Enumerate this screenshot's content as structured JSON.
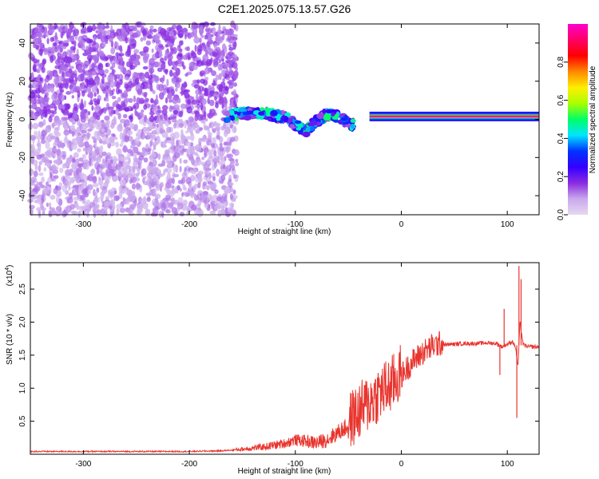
{
  "title": "C2E1.2025.075.13.57.G26",
  "chart_data": [
    {
      "type": "heatmap",
      "xlabel": "Height of straight line (km)",
      "ylabel": "Frequency (Hz)",
      "xlim": [
        -350,
        130
      ],
      "ylim": [
        -50,
        50
      ],
      "xticks": [
        -300,
        -200,
        -100,
        0,
        100
      ],
      "yticks": [
        -40,
        -20,
        0,
        20,
        40
      ],
      "colorbar": {
        "label": "Normalized spectral amplitude",
        "range": [
          0,
          1
        ],
        "ticks": [
          "0.0",
          "0.2",
          "0.4",
          "0.6",
          "0.8"
        ],
        "tick_values": [
          0,
          0.2,
          0.4,
          0.6,
          0.8
        ],
        "colormap": [
          "#e6d9f2",
          "#c9a8ec",
          "#8a2be2",
          "#3300ff",
          "#0033ff",
          "#00e5ff",
          "#00ff66",
          "#aaff00",
          "#ffee00",
          "#ff8800",
          "#ff0000",
          "#ff0066",
          "#ff00cc"
        ]
      },
      "features": [
        {
          "name": "noise",
          "x_range": [
            -350,
            -155
          ],
          "f_range": [
            -50,
            50
          ],
          "amplitude": 0.15
        },
        {
          "name": "tone-unstable",
          "x": [
            -165,
            -150,
            -130,
            -110,
            -100,
            -90,
            -80,
            -70,
            -60,
            -50,
            -45
          ],
          "f": [
            2,
            3,
            3,
            1,
            -3,
            -6,
            -1,
            3,
            1,
            -2,
            -3
          ],
          "amplitude": 0.4
        },
        {
          "name": "tone-stable",
          "x_range": [
            -30,
            130
          ],
          "f": 1.5,
          "amplitude": 0.97
        }
      ]
    },
    {
      "type": "line",
      "xlabel": "Height of straight line (km)",
      "ylabel": "SNR (10 * v/v)",
      "yscale_label": "(x10",
      "yscale_exp": "4",
      "yscale_close": ")",
      "xlim": [
        -350,
        130
      ],
      "ylim": [
        0,
        2.9
      ],
      "xticks": [
        -300,
        -200,
        -100,
        0,
        100
      ],
      "yticks": [
        "0.5",
        "1.0",
        "1.5",
        "2.0",
        "2.5"
      ],
      "ytick_values": [
        0.5,
        1.0,
        1.5,
        2.0,
        2.5
      ],
      "color": "#e8352e",
      "series": [
        {
          "x": [
            -350,
            -300,
            -250,
            -200,
            -170,
            -150,
            -130,
            -110,
            -100,
            -90,
            -80,
            -70,
            -60,
            -50,
            -40,
            -30,
            -20,
            -10,
            0,
            10,
            20,
            30,
            40,
            50,
            60,
            70,
            80,
            90,
            95,
            100,
            105,
            108,
            110,
            112,
            115,
            120,
            130
          ],
          "y": [
            0.04,
            0.04,
            0.04,
            0.04,
            0.05,
            0.07,
            0.1,
            0.15,
            0.2,
            0.18,
            0.15,
            0.2,
            0.3,
            0.4,
            0.55,
            0.7,
            0.85,
            0.95,
            1.15,
            1.35,
            1.5,
            1.6,
            1.65,
            1.66,
            1.67,
            1.67,
            1.68,
            1.67,
            1.62,
            1.66,
            1.7,
            1.6,
            1.3,
            2.0,
            1.65,
            1.62,
            1.62
          ],
          "spikes": [
            {
              "x": 93,
              "y": 1.2
            },
            {
              "x": 97,
              "y": 2.2
            },
            {
              "x": 109,
              "y": 0.55
            },
            {
              "x": 111,
              "y": 2.85
            },
            {
              "x": 113,
              "y": 2.65
            }
          ]
        }
      ]
    }
  ]
}
